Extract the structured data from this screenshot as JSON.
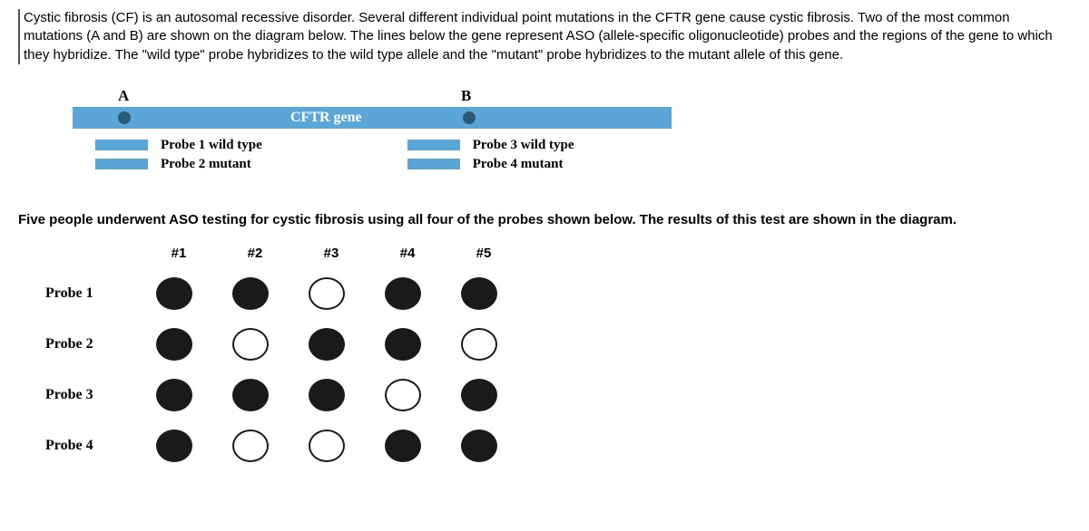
{
  "intro": "Cystic fibrosis (CF) is an autosomal recessive disorder. Several different individual point mutations in the CFTR gene cause cystic fibrosis. Two of the most common mutations (A and B) are shown on the diagram below. The lines below the gene represent ASO (allele-specific oligonucleotide) probes and the regions of the gene to which they hybridize. The \"wild type\" probe hybridizes to the wild type allele and the \"mutant\" probe hybridizes to the mutant allele of this gene.",
  "gene": {
    "mutationA": "A",
    "mutationB": "B",
    "label": "CFTR gene",
    "bar_color": "#5aa6d6",
    "dot_color": "#2a5a7a"
  },
  "legend": {
    "p1": "Probe 1 wild type",
    "p2": "Probe 2 mutant",
    "p3": "Probe 3 wild type",
    "p4": "Probe 4 mutant"
  },
  "mid": "Five people underwent ASO testing for cystic fibrosis using all four of the probes shown below. The results of this test are shown in the diagram.",
  "grid": {
    "columns": [
      "#1",
      "#2",
      "#3",
      "#4",
      "#5"
    ],
    "rows": [
      "Probe 1",
      "Probe 2",
      "Probe 3",
      "Probe 4"
    ],
    "filled": [
      [
        true,
        true,
        false,
        true,
        true
      ],
      [
        true,
        false,
        true,
        true,
        false
      ],
      [
        true,
        true,
        true,
        false,
        true
      ],
      [
        true,
        false,
        false,
        true,
        true
      ]
    ],
    "dot_fill": "#1a1a1a",
    "dot_border": "#1a1a1a"
  }
}
